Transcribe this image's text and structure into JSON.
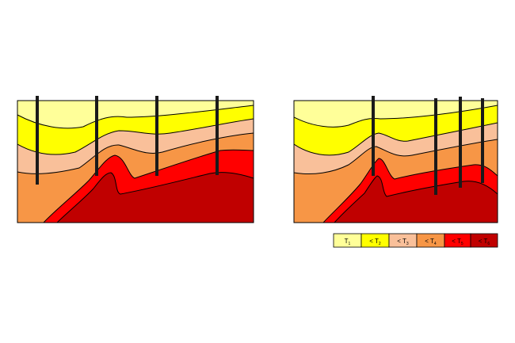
{
  "legend": {
    "items": [
      {
        "prefix": "",
        "symbol": "T",
        "sub": "1",
        "color": "#FFFF99"
      },
      {
        "prefix": "< ",
        "symbol": "T",
        "sub": "2",
        "color": "#FFFF00"
      },
      {
        "prefix": "< ",
        "symbol": "T",
        "sub": "3",
        "color": "#F9C09A"
      },
      {
        "prefix": "< ",
        "symbol": "T",
        "sub": "4",
        "color": "#F79646"
      },
      {
        "prefix": "< ",
        "symbol": "T",
        "sub": "5",
        "color": "#FF0000"
      },
      {
        "prefix": "< ",
        "symbol": "T",
        "sub": "6",
        "color": "#C00000"
      }
    ]
  },
  "colors": {
    "layer1": "#FFFF99",
    "layer2": "#FFFF00",
    "layer3": "#F9C09A",
    "layer4": "#F79646",
    "layer5": "#FF0000",
    "layer6": "#C00000",
    "outline": "#000000"
  }
}
